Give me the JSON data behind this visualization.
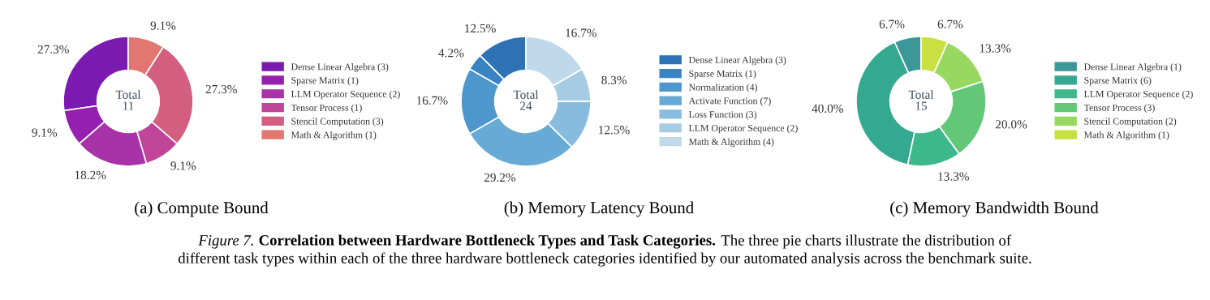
{
  "chart_data": [
    {
      "type": "donut",
      "xlabel": "(a) Compute Bound",
      "categories": [
        "Dense Linear Algebra (3)",
        "Sparse Matrix (1)",
        "LLM Operator Sequence (2)",
        "Tensor Process (1)",
        "Stencil Computation (3)",
        "Math & Algorithm (1)"
      ],
      "values": [
        27.3,
        9.1,
        18.2,
        9.1,
        27.3,
        9.1
      ],
      "value_labels": [
        "27.3%",
        "9.1%",
        "18.2%",
        "9.1%",
        "27.3%",
        "9.1%"
      ],
      "colors": [
        "#7b1ab0",
        "#9520b0",
        "#a832a8",
        "#c04498",
        "#d45e80",
        "#e27670"
      ],
      "legend": "right",
      "annotations": [
        "Total\n11",
        "Figure 7.",
        "Correlation between Hardware Bottleneck Types and Task Categories.",
        "The three pie charts illustrate the distribution of",
        "different task types within each of the three hardware bottleneck categories identified by our automated analysis across the benchmark suite."
      ]
    },
    {
      "type": "donut",
      "xlabel": "(b) Memory Latency Bound",
      "categories": [
        "Dense Linear Algebra (3)",
        "Sparse Matrix (1)",
        "Normalization (4)",
        "Activate Function (7)",
        "Loss Function (3)",
        "LLM Operator Sequence (2)",
        "Math & Algorithm (4)"
      ],
      "values": [
        12.5,
        4.2,
        16.7,
        29.2,
        12.5,
        8.3,
        16.7
      ],
      "value_labels": [
        "12.5%",
        "4.2%",
        "16.7%",
        "29.2%",
        "12.5%",
        "8.3%",
        "16.7%"
      ],
      "colors": [
        "#2e72b5",
        "#3a83c2",
        "#4e97cc",
        "#68aad6",
        "#88bcde",
        "#a6cce3",
        "#c0d9ea"
      ],
      "legend": "right",
      "annotations": [
        "Total\n24"
      ]
    },
    {
      "type": "donut",
      "xlabel": "(c) Memory Bandwidth Bound",
      "categories": [
        "Dense Linear Algebra (1)",
        "Sparse Matrix (6)",
        "LLM Operator Sequence (2)",
        "Tensor Process (3)",
        "Stencil Computation (2)",
        "Math & Algorithm (1)"
      ],
      "values": [
        6.7,
        40.0,
        13.3,
        20.0,
        13.3,
        6.7
      ],
      "value_labels": [
        "6.7%",
        "40.0%",
        "13.3%",
        "20.0%",
        "13.3%",
        "6.7%"
      ],
      "colors": [
        "#3a9898",
        "#35a890",
        "#3cb88a",
        "#62c878",
        "#98d860",
        "#c8e040"
      ],
      "legend": "right",
      "annotations": [
        "Total\n15"
      ]
    }
  ]
}
